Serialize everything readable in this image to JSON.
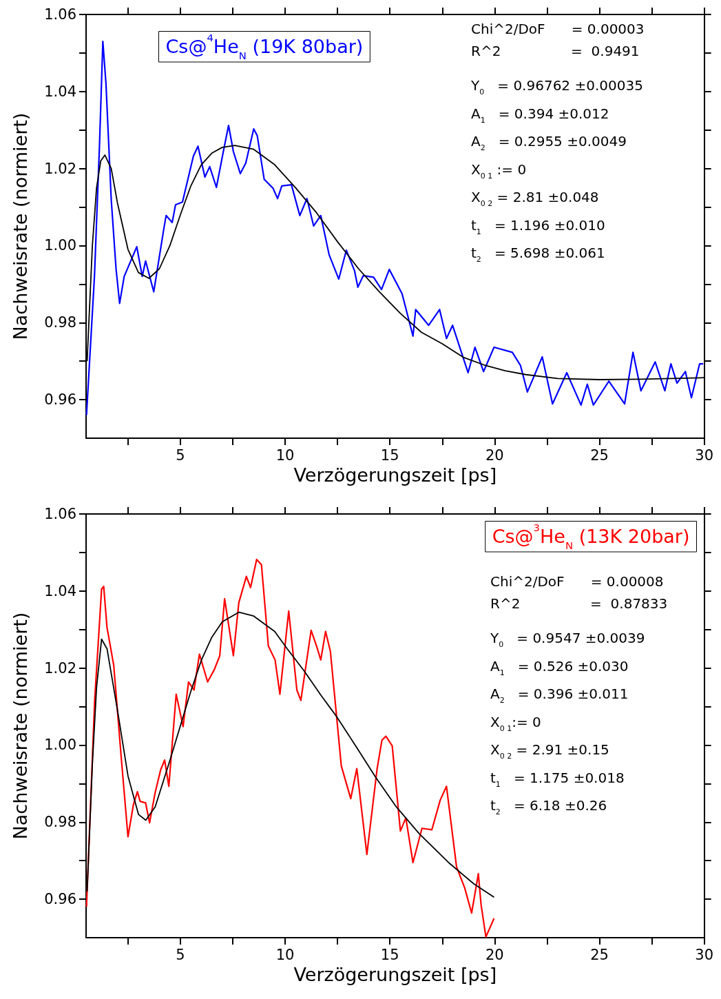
{
  "chart_data": [
    {
      "type": "line",
      "xlabel": "Verzögerungszeit [ps]",
      "ylabel": "Nachweisrate (normiert)",
      "xlim": [
        0.5,
        30
      ],
      "ylim": [
        0.95,
        1.06
      ],
      "xticks": [
        {
          "value": 2.5,
          "label": null
        },
        5,
        {
          "value": 7.5,
          "label": null
        },
        10,
        {
          "value": 12.5,
          "label": null
        },
        15,
        {
          "value": 17.5,
          "label": null
        },
        20,
        {
          "value": 22.5,
          "label": null
        },
        25,
        {
          "value": 27.5,
          "label": null
        },
        30
      ],
      "yticks": [
        0.96,
        {
          "value": 0.97,
          "label": null
        },
        0.98,
        {
          "value": 0.99,
          "label": null
        },
        {
          "value": 1,
          "label": "1.00"
        },
        {
          "value": 1.01,
          "label": null
        },
        1.02,
        {
          "value": 1.03,
          "label": null
        },
        1.04,
        {
          "value": 1.05,
          "label": null
        },
        1.06
      ],
      "grid": false,
      "marker": "none",
      "line_style": "solid",
      "series": [
        {
          "color": "#0000ff",
          "x": [
            0.52,
            0.9,
            1.14,
            1.3,
            1.45,
            1.7,
            1.93,
            2.1,
            2.32,
            2.92,
            3.18,
            3.34,
            3.73,
            4.22,
            4.32,
            4.61,
            4.77,
            5.1,
            5.62,
            5.84,
            6.17,
            6.4,
            6.72,
            7.05,
            7.3,
            7.53,
            7.86,
            8.12,
            8.5,
            8.67,
            9.0,
            9.42,
            9.64,
            9.84,
            10.3,
            10.7,
            11.04,
            11.36,
            11.7,
            12.1,
            12.56,
            12.92,
            13.31,
            13.47,
            13.73,
            14.22,
            14.6,
            14.97,
            15.58,
            16.1,
            16.23,
            16.85,
            17.37,
            17.7,
            17.99,
            18.73,
            19.06,
            19.47,
            19.97,
            20.84,
            21.23,
            21.56,
            22.27,
            22.76,
            23.44,
            24.12,
            24.42,
            24.71,
            25.45,
            26.2,
            26.6,
            26.98,
            27.66,
            28.12,
            28.41,
            28.7,
            29.1,
            29.39,
            29.78,
            29.95
          ],
          "values": [
            0.956,
            0.992,
            1.026,
            1.053,
            1.042,
            1.012,
            0.994,
            0.985,
            0.992,
            0.9997,
            0.992,
            0.996,
            0.988,
            1.0047,
            1.0078,
            1.006,
            1.0106,
            1.0113,
            1.0232,
            1.0258,
            1.0178,
            1.0205,
            1.0151,
            1.0244,
            1.0312,
            1.0244,
            1.0187,
            1.0214,
            1.0303,
            1.0285,
            1.0172,
            1.0149,
            1.0122,
            1.0155,
            1.0158,
            1.0078,
            1.0122,
            1.0051,
            1.0078,
            0.9976,
            0.9913,
            0.9988,
            0.9935,
            0.9892,
            0.9922,
            0.9918,
            0.9886,
            0.9938,
            0.9875,
            0.9765,
            0.9834,
            0.9793,
            0.9834,
            0.9759,
            0.9793,
            0.967,
            0.9736,
            0.9673,
            0.9736,
            0.9723,
            0.9689,
            0.962,
            0.9711,
            0.9589,
            0.967,
            0.9586,
            0.964,
            0.9586,
            0.9648,
            0.9589,
            0.9723,
            0.9623,
            0.9698,
            0.9623,
            0.9693,
            0.9643,
            0.9673,
            0.9605,
            0.9693,
            0.9693
          ]
        },
        {
          "type": "line",
          "color": "#000000",
          "x": [
            0.55,
            0.8,
            1.0,
            1.2,
            1.4,
            1.7,
            2.0,
            2.5,
            3.0,
            3.5,
            4.0,
            4.5,
            5.0,
            5.5,
            6.0,
            6.5,
            7.0,
            7.6,
            8.5,
            9.5,
            10.5,
            11.5,
            12.5,
            13.5,
            14.5,
            15.5,
            16.5,
            17.5,
            18.5,
            19.5,
            20.5,
            21.5,
            23,
            25,
            27,
            30
          ],
          "values": [
            0.97,
            1.0,
            1.015,
            1.022,
            1.0235,
            1.02,
            1.011,
            0.999,
            0.993,
            0.9915,
            0.994,
            1.0,
            1.008,
            1.0155,
            1.021,
            1.024,
            1.0255,
            1.026,
            1.025,
            1.021,
            1.015,
            1.0085,
            1.001,
            0.994,
            0.988,
            0.9824,
            0.9775,
            0.9745,
            0.971,
            0.969,
            0.9675,
            0.9665,
            0.9655,
            0.9652,
            0.9653,
            0.9657
          ]
        }
      ],
      "annotations": [
        "Cs@$^{4}$He$_{N}$ (19K 80bar)",
        "Chi^2/DoF      = 0.00003",
        "R^2                =  0.9491",
        "Y$_{0}$   = 0.96762 ±0.00035",
        "A$_{1}$   = 0.394 ±0.012",
        "A$_{2}$   = 0.2955 ±0.0049",
        "X$_{0 1}$ := 0",
        "X$_{0 2}$ = 2.81 ±0.048",
        "t$_{1}$   = 1.196 ±0.010",
        "t$_{2}$   = 5.698 ±0.061"
      ]
    },
    {
      "type": "line",
      "xlabel": "Verzögerungszeit [ps]",
      "ylabel": "Nachweisrate (normiert)",
      "xlim": [
        0.5,
        30
      ],
      "ylim": [
        0.95,
        1.06
      ],
      "xticks": [
        {
          "value": 2.5,
          "label": null
        },
        5,
        {
          "value": 7.5,
          "label": null
        },
        10,
        {
          "value": 12.5,
          "label": null
        },
        15,
        {
          "value": 17.5,
          "label": null
        },
        20,
        {
          "value": 22.5,
          "label": null
        },
        25,
        {
          "value": 27.5,
          "label": null
        },
        30
      ],
      "yticks": [
        0.96,
        {
          "value": 0.97,
          "label": null
        },
        0.98,
        {
          "value": 0.99,
          "label": null
        },
        {
          "value": 1,
          "label": "1.00"
        },
        {
          "value": 1.01,
          "label": null
        },
        1.02,
        {
          "value": 1.03,
          "label": null
        },
        1.04,
        {
          "value": 1.05,
          "label": null
        },
        1.06
      ],
      "grid": false,
      "marker": "none",
      "line_style": "solid",
      "series": [
        {
          "color": "#ff0000",
          "x": [
            0.52,
            0.91,
            1.24,
            1.34,
            1.5,
            1.82,
            2.0,
            2.17,
            2.5,
            2.76,
            2.95,
            3.08,
            3.34,
            3.53,
            3.79,
            4.06,
            4.25,
            4.45,
            4.8,
            5.13,
            5.39,
            5.65,
            5.91,
            6.3,
            6.62,
            6.88,
            7.11,
            7.53,
            7.79,
            8.15,
            8.35,
            8.64,
            8.87,
            9.2,
            9.52,
            9.75,
            10.17,
            10.56,
            10.75,
            11.24,
            11.5,
            11.7,
            11.93,
            12.16,
            12.68,
            13.13,
            13.42,
            13.9,
            14.39,
            14.62,
            14.81,
            15.11,
            15.5,
            15.76,
            16.1,
            16.53,
            17.0,
            17.4,
            17.7,
            18.18,
            18.57,
            18.9,
            19.22,
            19.35,
            19.58,
            19.97
          ],
          "values": [
            0.958,
            1.0116,
            1.0405,
            1.0412,
            1.0305,
            1.0207,
            1.0087,
            0.9973,
            0.9762,
            0.9846,
            0.9879,
            0.9854,
            0.985,
            0.9798,
            0.9875,
            0.9936,
            0.9961,
            0.9893,
            1.0132,
            1.0048,
            1.0164,
            1.0143,
            1.0236,
            1.0164,
            1.0196,
            1.0232,
            1.038,
            1.0232,
            1.037,
            1.0438,
            1.0409,
            1.0482,
            1.0468,
            1.0257,
            1.0221,
            1.0132,
            1.0348,
            1.0143,
            1.0116,
            1.0298,
            1.0257,
            1.0221,
            1.0295,
            1.0243,
            0.9946,
            0.9861,
            0.9939,
            0.9716,
            0.9939,
            1.0013,
            1.0023,
            0.9998,
            0.9777,
            0.9811,
            0.9695,
            0.9784,
            0.978,
            0.9857,
            0.9893,
            0.9684,
            0.9629,
            0.9564,
            0.9666,
            0.9586,
            0.9502,
            0.955
          ]
        },
        {
          "type": "line",
          "color": "#000000",
          "x": [
            0.55,
            0.8,
            1.0,
            1.24,
            1.5,
            2.0,
            2.5,
            3.0,
            3.35,
            3.8,
            4.5,
            5.0,
            5.5,
            6.0,
            6.5,
            7.0,
            7.8,
            8.5,
            9.5,
            10.1,
            10.9,
            11.7,
            12.47,
            13.4,
            14.3,
            15.3,
            16.4,
            17.8,
            19.0,
            19.97
          ],
          "values": [
            0.962,
            0.995,
            1.015,
            1.0275,
            1.025,
            1.009,
            0.992,
            0.982,
            0.9805,
            0.984,
            0.996,
            1.005,
            1.014,
            1.022,
            1.028,
            1.032,
            1.0345,
            1.0335,
            1.0295,
            1.025,
            1.0193,
            1.013,
            1.0073,
            0.9995,
            0.9918,
            0.984,
            0.977,
            0.9695,
            0.964,
            0.9605
          ]
        }
      ],
      "annotations": [
        "Cs@$^{3}$He$_{N}$ (13K 20bar)",
        "Chi^2/DoF      = 0.00008",
        "R^2                =  0.87833",
        "Y$_{0}$   = 0.9547 ±0.0039",
        "A$_{1}$   = 0.526 ±0.030",
        "A$_{2}$   = 0.396 ±0.011",
        "X$_{0 1}$:= 0",
        "X$_{0 2}$ = 2.91 ±0.15",
        "t$_{1}$   = 1.175 ±0.018",
        "t$_{2}$   = 6.18 ±0.26"
      ]
    }
  ]
}
